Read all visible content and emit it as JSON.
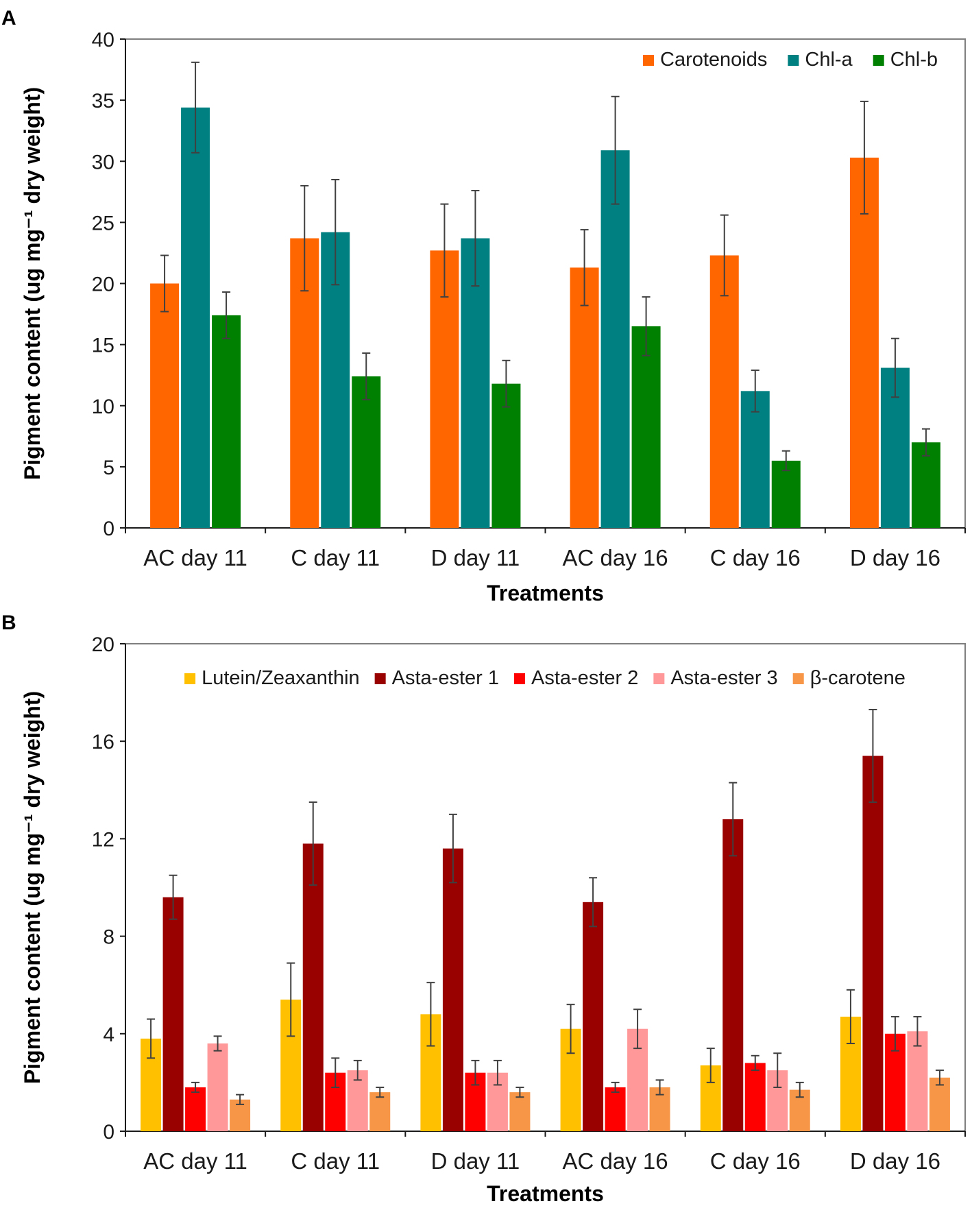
{
  "chart_data": [
    {
      "panel": "A",
      "type": "bar",
      "categories": [
        "AC day 11",
        "C day 11",
        "D day 11",
        "AC day 16",
        "C day 16",
        "D day 16"
      ],
      "series": [
        {
          "name": "Carotenoids",
          "color": "#ff6600",
          "values": [
            20.0,
            23.7,
            22.7,
            21.3,
            22.3,
            30.3
          ],
          "errors": [
            2.3,
            4.3,
            3.8,
            3.1,
            3.3,
            4.6
          ]
        },
        {
          "name": "Chl-a",
          "color": "#008080",
          "values": [
            34.4,
            24.2,
            23.7,
            30.9,
            11.2,
            13.1
          ],
          "errors": [
            3.7,
            4.3,
            3.9,
            4.4,
            1.7,
            2.4
          ]
        },
        {
          "name": "Chl-b",
          "color": "#008000",
          "values": [
            17.4,
            12.4,
            11.8,
            16.5,
            5.5,
            7.0
          ],
          "errors": [
            1.9,
            1.9,
            1.9,
            2.4,
            0.8,
            1.1
          ]
        }
      ],
      "ylim": [
        0,
        40
      ],
      "yticks": [
        0,
        5,
        10,
        15,
        20,
        25,
        30,
        35,
        40
      ],
      "xlabel": "Treatments",
      "ylabel": "Pigment content (ug mg⁻¹ dry weight)",
      "legend_position": "top-right"
    },
    {
      "panel": "B",
      "type": "bar",
      "categories": [
        "AC day 11",
        "C day 11",
        "D day 11",
        "AC day 16",
        "C day 16",
        "D day 16"
      ],
      "series": [
        {
          "name": "Lutein/Zeaxanthin",
          "color": "#ffc000",
          "values": [
            3.8,
            5.4,
            4.8,
            4.2,
            2.7,
            4.7
          ],
          "errors": [
            0.8,
            1.5,
            1.3,
            1.0,
            0.7,
            1.1
          ]
        },
        {
          "name": "Asta-ester 1",
          "color": "#990000",
          "values": [
            9.6,
            11.8,
            11.6,
            9.4,
            12.8,
            15.4
          ],
          "errors": [
            0.9,
            1.7,
            1.4,
            1.0,
            1.5,
            1.9
          ]
        },
        {
          "name": "Asta-ester 2",
          "color": "#ff0000",
          "values": [
            1.8,
            2.4,
            2.4,
            1.8,
            2.8,
            4.0
          ],
          "errors": [
            0.2,
            0.6,
            0.5,
            0.2,
            0.3,
            0.7
          ]
        },
        {
          "name": "Asta-ester 3",
          "color": "#ff9999",
          "values": [
            3.6,
            2.5,
            2.4,
            4.2,
            2.5,
            4.1
          ],
          "errors": [
            0.3,
            0.4,
            0.5,
            0.8,
            0.7,
            0.6
          ]
        },
        {
          "name": "β-carotene",
          "color": "#f79646",
          "values": [
            1.3,
            1.6,
            1.6,
            1.8,
            1.7,
            2.2
          ],
          "errors": [
            0.2,
            0.2,
            0.2,
            0.3,
            0.3,
            0.3
          ]
        }
      ],
      "ylim": [
        0,
        20
      ],
      "yticks": [
        0,
        4,
        8,
        12,
        16,
        20
      ],
      "xlabel": "Treatments",
      "ylabel": "Pigment content (ug mg⁻¹ dry weight)",
      "legend_position": "top"
    }
  ]
}
